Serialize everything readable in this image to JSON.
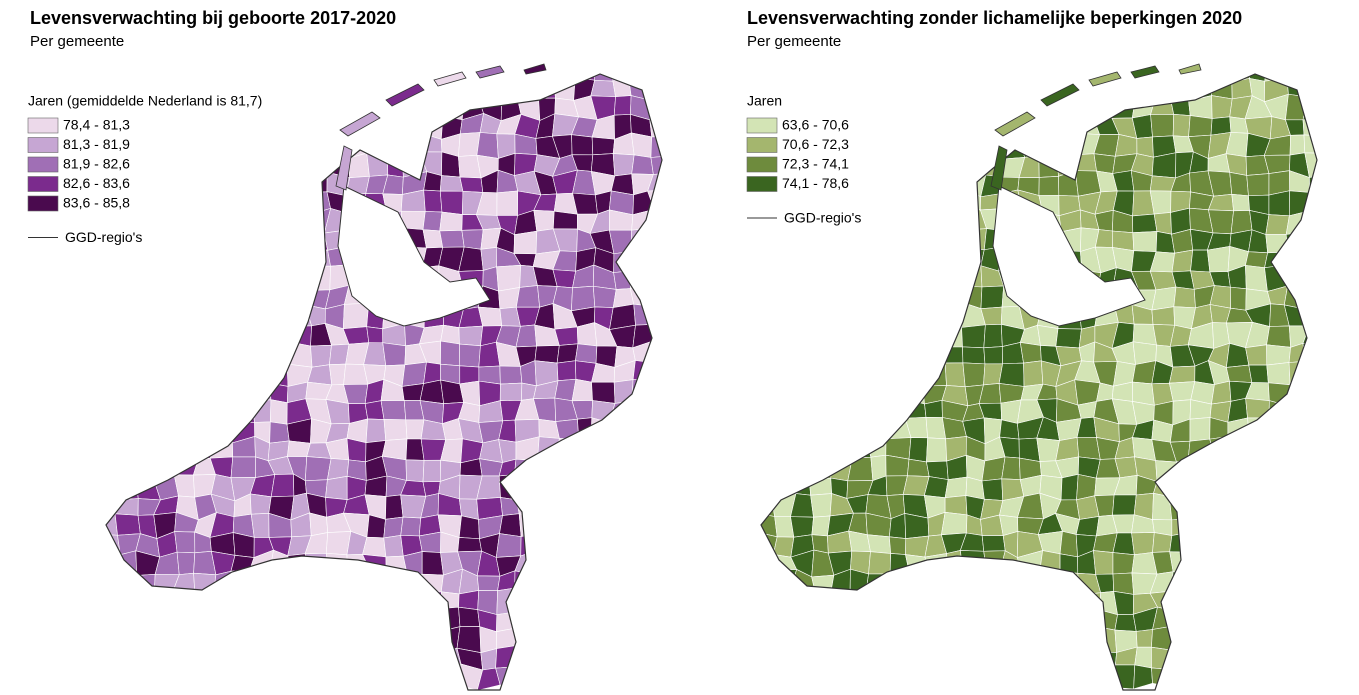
{
  "maps": [
    {
      "title": "Levensverwachting bij geboorte 2017-2020",
      "subtitle": "Per gemeente",
      "legend_title": "Jaren (gemiddelde Nederland is 81,7)",
      "legend": [
        {
          "label": "78,4 - 81,3",
          "color": "#ecd9ea"
        },
        {
          "label": "81,3 - 81,9",
          "color": "#c6a6d3"
        },
        {
          "label": "81,9 - 82,6",
          "color": "#a06fb5"
        },
        {
          "label": "82,6 - 83,6",
          "color": "#7b2b8d"
        },
        {
          "label": "83,6 - 85,8",
          "color": "#4a0a4e"
        }
      ],
      "border_label": "GGD-regio's"
    },
    {
      "title": "Levensverwachting zonder lichamelijke beperkingen 2020",
      "subtitle": "Per gemeente",
      "legend_title": "Jaren",
      "legend": [
        {
          "label": "63,6 - 70,6",
          "color": "#d3e4b5"
        },
        {
          "label": "70,6 - 72,3",
          "color": "#a4b66e"
        },
        {
          "label": "72,3 - 74,1",
          "color": "#6e8b3d"
        },
        {
          "label": "74,1 - 78,6",
          "color": "#3a6520"
        }
      ],
      "border_label": "GGD-regio's"
    }
  ]
}
